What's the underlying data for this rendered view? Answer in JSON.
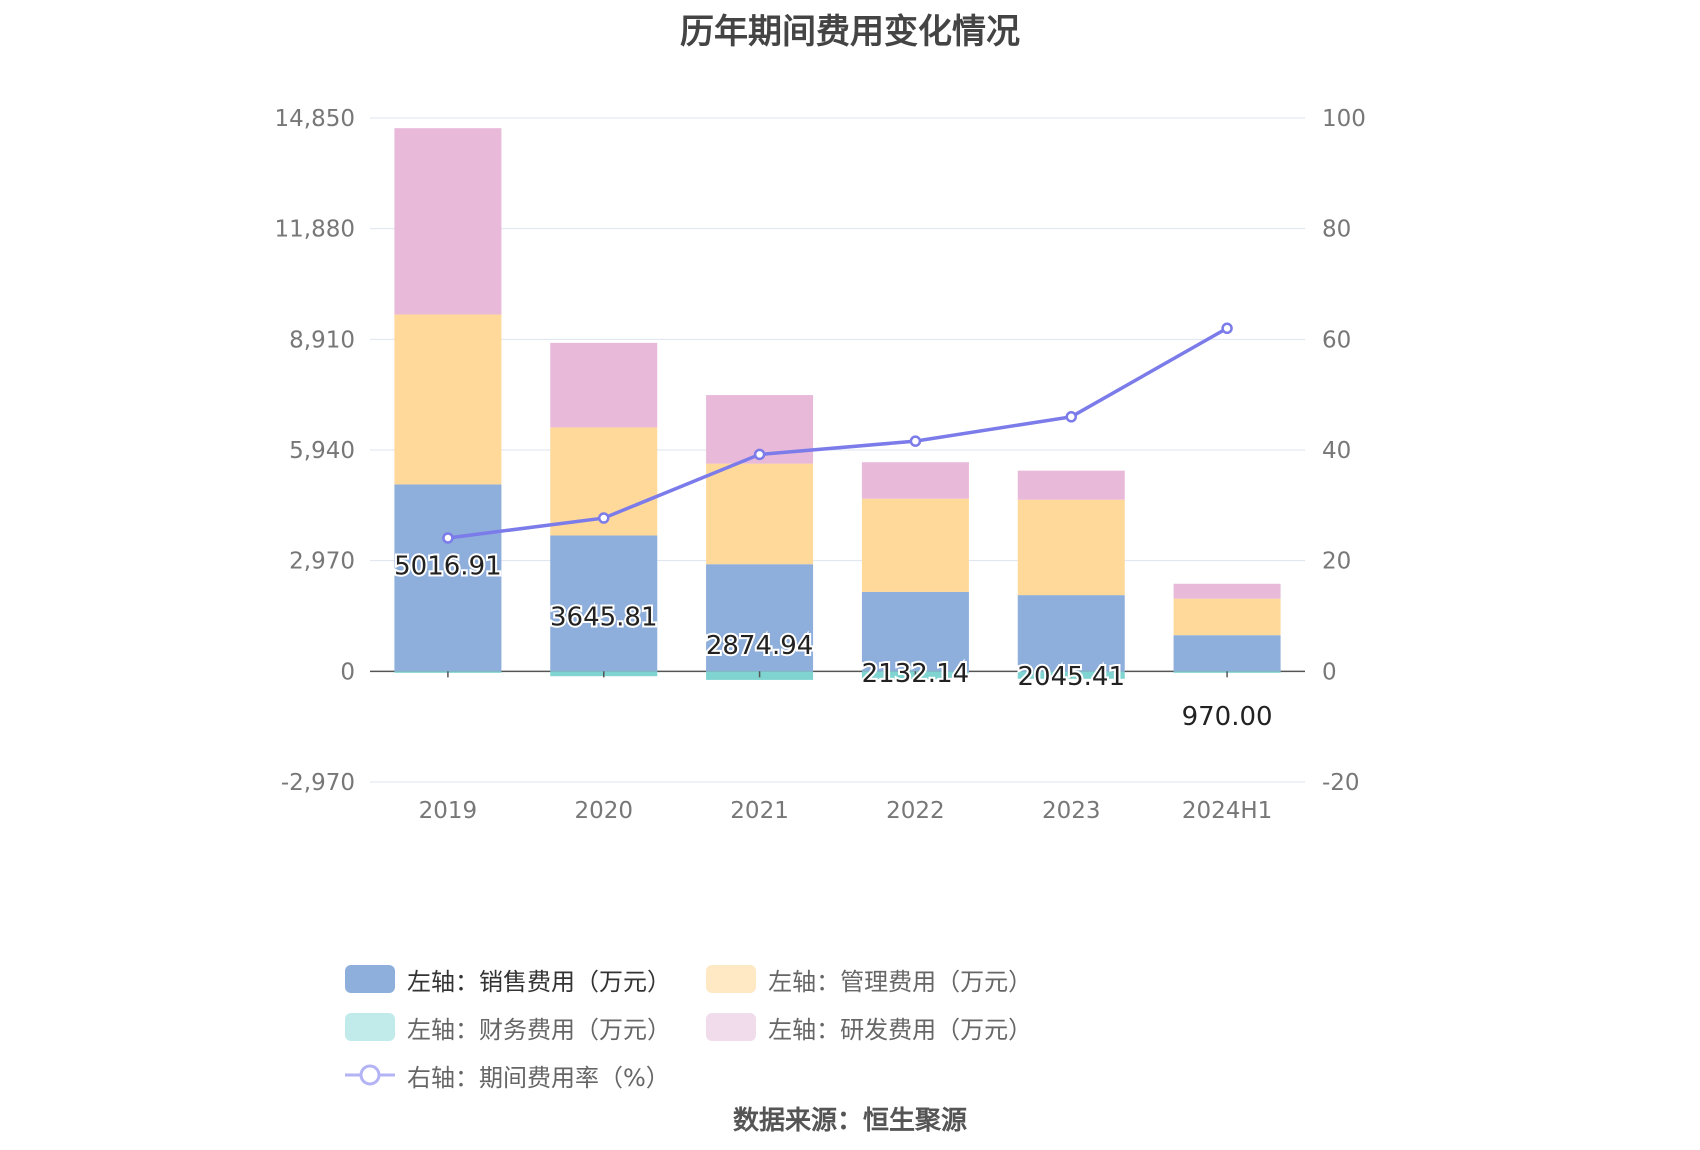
{
  "title": "历年期间费用变化情况",
  "source_label": "数据来源：恒生聚源",
  "legend": [
    {
      "label": "左轴：销售费用（万元）",
      "color": "#8eaedc",
      "type": "bar",
      "active": true
    },
    {
      "label": "左轴：管理费用（万元）",
      "color": "#ffe8c4",
      "type": "bar",
      "active": false
    },
    {
      "label": "左轴：财务费用（万元）",
      "color": "#c1ebea",
      "type": "bar",
      "active": false
    },
    {
      "label": "左轴：研发费用（万元）",
      "color": "#f1dcec",
      "type": "bar",
      "active": false
    },
    {
      "label": "右轴：期间费用率（%）",
      "color": "#b3b3f5",
      "type": "line",
      "active": false
    }
  ],
  "chart_data": {
    "type": "bar",
    "stacked": true,
    "categories": [
      "2019",
      "2020",
      "2021",
      "2022",
      "2023",
      "2024H1"
    ],
    "series": [
      {
        "name": "左轴：销售费用（万元）",
        "axis": "left",
        "color": "#8eaedc",
        "values": [
          5016.91,
          3645.81,
          2874.94,
          2132.14,
          2045.41,
          970.0
        ]
      },
      {
        "name": "左轴：管理费用（万元）",
        "axis": "left",
        "color": "#ffd999",
        "values": [
          4560,
          2900,
          2700,
          2500,
          2560,
          980
        ]
      },
      {
        "name": "左轴：财务费用（万元）",
        "axis": "left",
        "color": "#7fd3d0",
        "values": [
          -40,
          -130,
          -230,
          -210,
          -200,
          -40
        ]
      },
      {
        "name": "左轴：研发费用（万元）",
        "axis": "left",
        "color": "#e8b9d9",
        "values": [
          5000,
          2270,
          1840,
          980,
          780,
          400
        ]
      },
      {
        "name": "右轴：期间费用率（%）",
        "axis": "right",
        "type": "line",
        "color": "#7b7bea",
        "values": [
          24.1,
          27.7,
          39.2,
          41.6,
          46.0,
          62.0
        ]
      }
    ],
    "data_labels": [
      "5016.91",
      "3645.81",
      "2874.94",
      "2132.14",
      "2045.41",
      "970.00"
    ],
    "left_axis": {
      "min": -2970,
      "max": 14850,
      "ticks": [
        "-2,970",
        "0",
        "2,970",
        "5,940",
        "8,910",
        "11,880",
        "14,850"
      ]
    },
    "right_axis": {
      "min": -20,
      "max": 100,
      "ticks": [
        "-20",
        "0",
        "20",
        "40",
        "60",
        "80",
        "100"
      ]
    },
    "grid": true,
    "legend_position": "bottom"
  }
}
